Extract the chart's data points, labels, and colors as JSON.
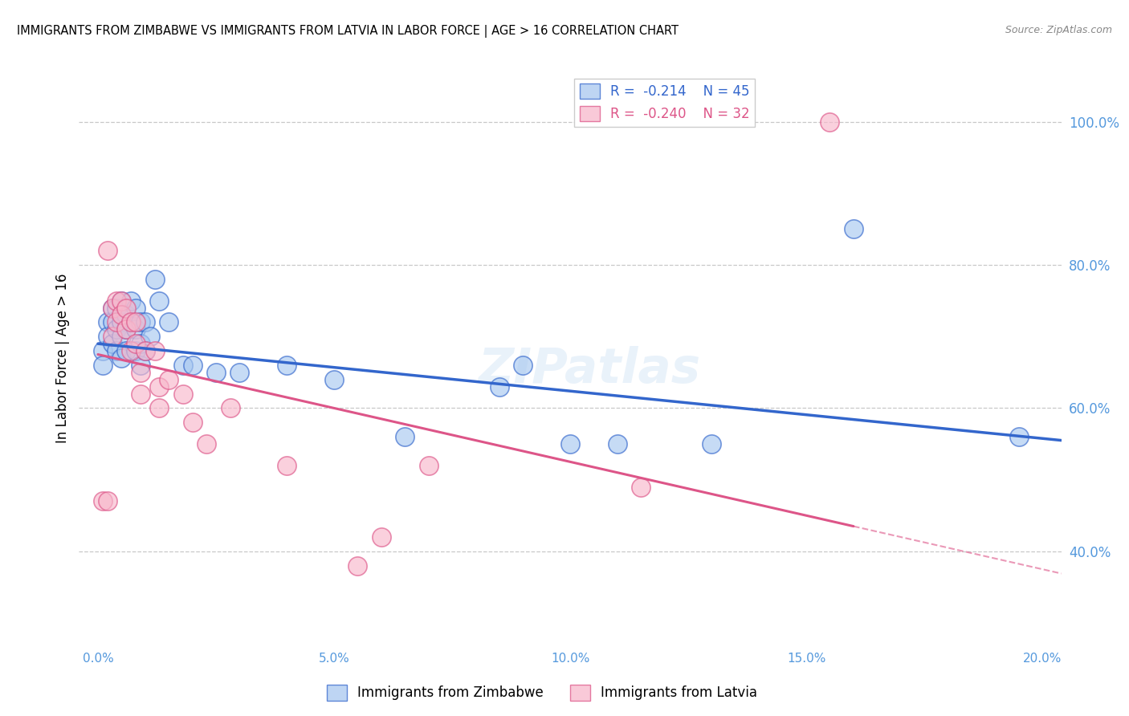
{
  "title": "IMMIGRANTS FROM ZIMBABWE VS IMMIGRANTS FROM LATVIA IN LABOR FORCE | AGE > 16 CORRELATION CHART",
  "source": "Source: ZipAtlas.com",
  "ylabel": "In Labor Force | Age > 16",
  "xlabel_ticks": [
    "0.0%",
    "5.0%",
    "10.0%",
    "15.0%",
    "20.0%"
  ],
  "xlabel_vals": [
    0.0,
    0.05,
    0.1,
    0.15,
    0.2
  ],
  "ylabel_ticks_right": [
    "100.0%",
    "80.0%",
    "60.0%",
    "40.0%"
  ],
  "ylabel_vals": [
    1.0,
    0.8,
    0.6,
    0.4
  ],
  "legend_r_blue": "-0.214",
  "legend_n_blue": "45",
  "legend_r_pink": "-0.240",
  "legend_n_pink": "32",
  "blue_color": "#a8c8f0",
  "pink_color": "#f8b8cc",
  "trend_blue": "#3366cc",
  "trend_pink": "#dd5588",
  "watermark": "ZIPatlas",
  "background_color": "#ffffff",
  "grid_color": "#c8c8c8",
  "axis_color": "#5599dd",
  "title_fontsize": 11,
  "blue_x": [
    0.001,
    0.001,
    0.002,
    0.002,
    0.003,
    0.003,
    0.003,
    0.004,
    0.004,
    0.004,
    0.005,
    0.005,
    0.005,
    0.005,
    0.006,
    0.006,
    0.006,
    0.007,
    0.007,
    0.008,
    0.008,
    0.008,
    0.009,
    0.009,
    0.009,
    0.01,
    0.01,
    0.011,
    0.012,
    0.013,
    0.015,
    0.018,
    0.02,
    0.025,
    0.03,
    0.04,
    0.05,
    0.065,
    0.085,
    0.09,
    0.1,
    0.11,
    0.13,
    0.16,
    0.195
  ],
  "blue_y": [
    0.68,
    0.66,
    0.72,
    0.7,
    0.74,
    0.72,
    0.69,
    0.74,
    0.71,
    0.68,
    0.75,
    0.72,
    0.7,
    0.67,
    0.73,
    0.71,
    0.68,
    0.75,
    0.72,
    0.74,
    0.71,
    0.68,
    0.72,
    0.69,
    0.66,
    0.72,
    0.68,
    0.7,
    0.78,
    0.75,
    0.72,
    0.66,
    0.66,
    0.65,
    0.65,
    0.66,
    0.64,
    0.56,
    0.63,
    0.66,
    0.55,
    0.55,
    0.55,
    0.85,
    0.56
  ],
  "pink_x": [
    0.001,
    0.002,
    0.002,
    0.003,
    0.003,
    0.004,
    0.004,
    0.005,
    0.005,
    0.006,
    0.006,
    0.007,
    0.007,
    0.008,
    0.008,
    0.009,
    0.009,
    0.01,
    0.012,
    0.013,
    0.013,
    0.015,
    0.018,
    0.02,
    0.023,
    0.028,
    0.04,
    0.055,
    0.06,
    0.07,
    0.115,
    0.155
  ],
  "pink_y": [
    0.47,
    0.47,
    0.82,
    0.74,
    0.7,
    0.75,
    0.72,
    0.75,
    0.73,
    0.74,
    0.71,
    0.72,
    0.68,
    0.72,
    0.69,
    0.65,
    0.62,
    0.68,
    0.68,
    0.63,
    0.6,
    0.64,
    0.62,
    0.58,
    0.55,
    0.6,
    0.52,
    0.38,
    0.42,
    0.52,
    0.49,
    1.0
  ],
  "xmin": -0.004,
  "xmax": 0.204,
  "ymin": 0.27,
  "ymax": 1.07,
  "trend_blue_x0": 0.0,
  "trend_blue_x1": 0.204,
  "trend_blue_y0": 0.69,
  "trend_blue_y1": 0.555,
  "trend_pink_x0": 0.0,
  "trend_pink_x1": 0.16,
  "trend_pink_y0": 0.675,
  "trend_pink_y1": 0.435
}
